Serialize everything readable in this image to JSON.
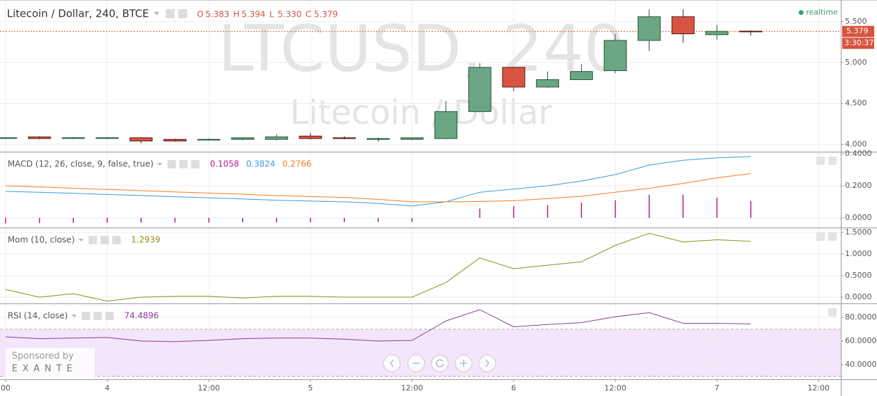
{
  "chart_data": [
    {
      "type": "candlestick",
      "title": "Litecoin / Dollar, 240, BTCE",
      "legend": [
        {
          "key": "O",
          "value": "5.383"
        },
        {
          "key": "H",
          "value": "5.394"
        },
        {
          "key": "L",
          "value": "5.330"
        },
        {
          "key": "C",
          "value": "5.379"
        }
      ],
      "status": "realtime",
      "watermark": [
        "LTCUSD, 240",
        "Litecoin / Dollar"
      ],
      "x": [
        0,
        4,
        8,
        12,
        16,
        20,
        24,
        28,
        32,
        36,
        40,
        44,
        48,
        52,
        56,
        60,
        64,
        68,
        72,
        76,
        80,
        84,
        88
      ],
      "open": [
        4.08,
        4.09,
        4.08,
        4.08,
        4.08,
        4.06,
        4.06,
        4.06,
        4.06,
        4.1,
        4.08,
        4.06,
        4.06,
        4.07,
        4.4,
        4.94,
        4.7,
        4.79,
        4.9,
        5.27,
        5.56,
        5.34,
        5.383
      ],
      "high": [
        4.09,
        4.1,
        4.09,
        4.09,
        4.09,
        4.07,
        4.07,
        4.08,
        4.12,
        4.14,
        4.1,
        4.08,
        4.08,
        4.53,
        4.99,
        4.95,
        4.89,
        4.98,
        5.35,
        5.65,
        5.65,
        5.46,
        5.394
      ],
      "low": [
        4.07,
        4.06,
        4.07,
        4.07,
        4.01,
        4.03,
        4.05,
        4.05,
        4.05,
        4.06,
        4.06,
        4.03,
        4.05,
        4.06,
        4.39,
        4.65,
        4.69,
        4.79,
        4.87,
        5.14,
        5.24,
        5.28,
        5.33
      ],
      "close": [
        4.08,
        4.07,
        4.08,
        4.08,
        4.04,
        4.04,
        4.06,
        4.08,
        4.09,
        4.07,
        4.07,
        4.07,
        4.08,
        4.4,
        4.94,
        4.7,
        4.79,
        4.89,
        5.27,
        5.56,
        5.35,
        5.38,
        5.379
      ],
      "up_color": "#6ba583",
      "down_color": "#d75442",
      "last_price": {
        "value": 5.379,
        "label": "5.379"
      },
      "countdown": "3:30:37",
      "ylim": [
        3.909,
        5.764
      ],
      "yticks": [
        {
          "value": 4.0,
          "label": "4.000"
        },
        {
          "value": 4.5,
          "label": "4.500"
        },
        {
          "value": 5.0,
          "label": "5.000"
        },
        {
          "value": 5.5,
          "label": "5.500"
        }
      ]
    },
    {
      "type": "line",
      "title": "MACD (12, 26, close, 9, false, true)",
      "x": [
        0,
        4,
        8,
        12,
        16,
        20,
        24,
        28,
        32,
        36,
        40,
        44,
        48,
        52,
        56,
        60,
        64,
        68,
        72,
        76,
        80,
        84,
        88
      ],
      "series": [
        {
          "type": "histogram",
          "color": "#b71c8e",
          "value_label": "0.1058",
          "values": [
            -0.035,
            -0.033,
            -0.032,
            -0.031,
            -0.031,
            -0.03,
            -0.03,
            -0.029,
            -0.029,
            -0.028,
            -0.027,
            -0.026,
            -0.026,
            0.0,
            0.058,
            0.073,
            0.08,
            0.095,
            0.11,
            0.145,
            0.145,
            0.125,
            0.1058
          ]
        },
        {
          "type": "line",
          "color": "#3b9ae1",
          "value_label": "0.3824",
          "values": [
            0.165,
            0.16,
            0.153,
            0.146,
            0.139,
            0.132,
            0.125,
            0.118,
            0.11,
            0.105,
            0.1,
            0.09,
            0.074,
            0.1,
            0.16,
            0.18,
            0.2,
            0.23,
            0.27,
            0.33,
            0.36,
            0.375,
            0.3824
          ]
        },
        {
          "type": "line",
          "color": "#f57c1f",
          "value_label": "0.2766",
          "values": [
            0.2,
            0.193,
            0.185,
            0.177,
            0.17,
            0.162,
            0.155,
            0.147,
            0.139,
            0.133,
            0.127,
            0.116,
            0.1,
            0.1,
            0.102,
            0.107,
            0.12,
            0.135,
            0.16,
            0.185,
            0.215,
            0.25,
            0.2766
          ]
        }
      ],
      "ylim": [
        -0.0609,
        0.4087
      ],
      "yticks": [
        {
          "value": 0.0,
          "label": "0.0000"
        },
        {
          "value": 0.2,
          "label": "0.2000"
        },
        {
          "value": 0.4,
          "label": "0.4000"
        }
      ]
    },
    {
      "type": "line",
      "title": "Mom (10, close)",
      "x": [
        0,
        4,
        8,
        12,
        16,
        20,
        24,
        28,
        32,
        36,
        40,
        44,
        48,
        52,
        56,
        60,
        64,
        68,
        72,
        76,
        80,
        84,
        88
      ],
      "series": [
        {
          "type": "line",
          "color": "#8d8d1e",
          "value_label": "1.2939",
          "values": [
            0.18,
            0.0,
            0.08,
            -0.09,
            0.0,
            0.02,
            0.02,
            -0.02,
            0.02,
            0.02,
            0.0,
            0.0,
            0.0,
            0.34,
            0.91,
            0.66,
            0.74,
            0.82,
            1.2,
            1.48,
            1.28,
            1.33,
            1.2939
          ]
        }
      ],
      "ylim": [
        -0.145,
        1.597
      ],
      "yticks": [
        {
          "value": 0.0,
          "label": "0.0000"
        },
        {
          "value": 0.5,
          "label": "0.5000"
        },
        {
          "value": 1.0,
          "label": "1.0000"
        },
        {
          "value": 1.5,
          "label": "1.5000"
        }
      ]
    },
    {
      "type": "line",
      "title": "RSI (14, close)",
      "x": [
        0,
        4,
        8,
        12,
        16,
        20,
        24,
        28,
        32,
        36,
        40,
        44,
        48,
        52,
        56,
        60,
        64,
        68,
        72,
        76,
        80,
        84,
        88
      ],
      "series": [
        {
          "type": "line",
          "color": "#8e3a9b",
          "value_label": "74.4896",
          "values": [
            63.5,
            62,
            62.5,
            63,
            60,
            59.5,
            60.5,
            62,
            62.5,
            62.5,
            61.5,
            60,
            60.5,
            77,
            86.5,
            72,
            74,
            75.5,
            80.5,
            84,
            75,
            75,
            74.4896
          ]
        }
      ],
      "band": [
        30,
        70
      ],
      "band_color": "#f3e5fb",
      "ylim": [
        27.6,
        91.2
      ],
      "yticks": [
        {
          "value": 40,
          "label": "40.0000"
        },
        {
          "value": 60,
          "label": "60.0000"
        },
        {
          "value": 80,
          "label": "80.0000"
        }
      ],
      "xlim": [
        -0.66,
        98.63
      ],
      "xticks": [
        {
          "value": 0,
          "label": "00"
        },
        {
          "value": 12,
          "label": "4"
        },
        {
          "value": 24,
          "label": "12:00"
        },
        {
          "value": 36,
          "label": "5"
        },
        {
          "value": 48,
          "label": "12:00"
        },
        {
          "value": 60,
          "label": "6"
        },
        {
          "value": 72,
          "label": "12:00"
        },
        {
          "value": 84,
          "label": "7"
        },
        {
          "value": 96,
          "label": "12:00"
        }
      ]
    }
  ],
  "sponsor": {
    "label": "Sponsored by",
    "name": "EXANTE"
  }
}
